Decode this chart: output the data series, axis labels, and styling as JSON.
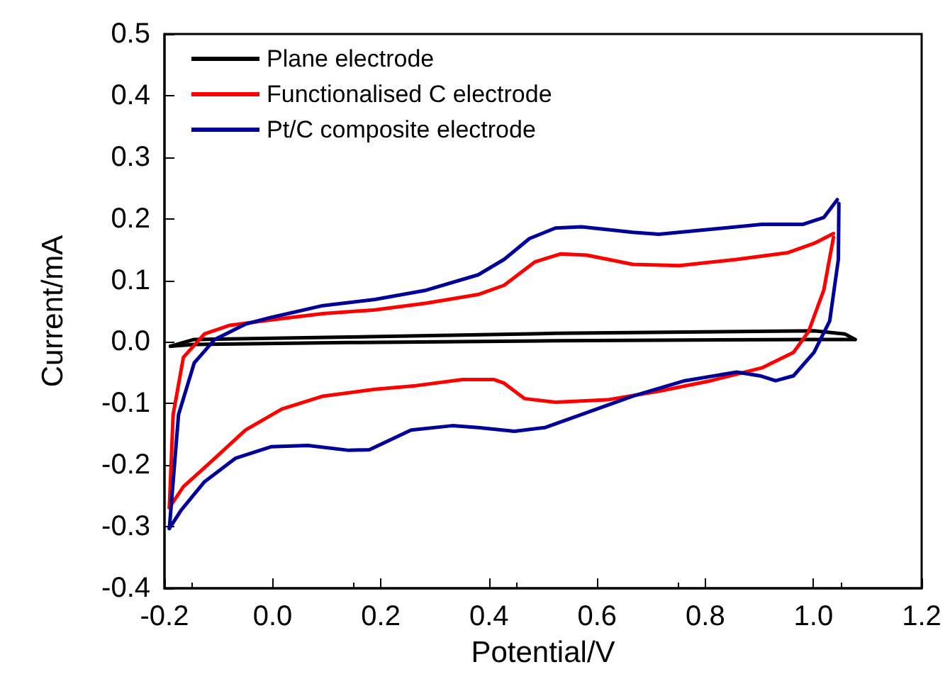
{
  "chart_data": {
    "type": "line",
    "xlabel": "Potential/V",
    "ylabel": "Current/mA",
    "xlim": [
      -0.2,
      1.2
    ],
    "xticks": [
      -0.2,
      {
        "value": 0,
        "label": "0.0"
      },
      0.2,
      0.4,
      0.6,
      0.8,
      {
        "value": 1,
        "label": "1.0"
      },
      1.2
    ],
    "ylim": [
      -0.4,
      0.5
    ],
    "yticks": [
      -0.4,
      -0.3,
      -0.2,
      -0.1,
      {
        "value": 0,
        "label": "0.0"
      },
      0.1,
      0.2,
      0.3,
      0.4,
      0.5
    ],
    "grid": false,
    "legend": "top left",
    "marker": "none",
    "line_style": "solid",
    "series": [
      {
        "name": "Plane electrode",
        "color": "#000000",
        "x": [
          -0.189,
          -0.145,
          0.141,
          0.523,
          1.001,
          1.058,
          1.077
        ],
        "values": [
          -0.007,
          0.004,
          0.008,
          0.014,
          0.018,
          0.013,
          0.004
        ]
      },
      {
        "color": "#000000",
        "x": [
          -0.189,
          -0.145,
          0.141,
          0.523,
          1.0,
          1.077
        ],
        "values": [
          -0.007,
          -0.004,
          -0.001,
          0.002,
          0.004,
          0.004
        ]
      },
      {
        "name": "Functionalised C electrode",
        "color": "#ff0000",
        "x": [
          -0.191,
          -0.184,
          -0.165,
          -0.126,
          -0.079,
          -0.002,
          0.093,
          0.189,
          0.284,
          0.38,
          0.428,
          0.485,
          0.533,
          0.581,
          0.666,
          0.752,
          0.858,
          0.953,
          1.001,
          1.037
        ],
        "values": [
          -0.269,
          -0.118,
          -0.025,
          0.013,
          0.027,
          0.036,
          0.046,
          0.052,
          0.063,
          0.077,
          0.092,
          0.13,
          0.143,
          0.141,
          0.126,
          0.124,
          0.134,
          0.145,
          0.16,
          0.176
        ]
      },
      {
        "color": "#ff0000",
        "x": [
          -0.191,
          -0.165,
          -0.117,
          -0.05,
          0.017,
          0.093,
          0.189,
          0.265,
          0.351,
          0.409,
          0.428,
          0.466,
          0.523,
          0.619,
          0.714,
          0.81,
          0.905,
          0.963,
          0.991,
          1.019,
          1.037
        ],
        "values": [
          -0.269,
          -0.235,
          -0.197,
          -0.143,
          -0.109,
          -0.088,
          -0.077,
          -0.071,
          -0.061,
          -0.061,
          -0.067,
          -0.092,
          -0.098,
          -0.094,
          -0.08,
          -0.063,
          -0.042,
          -0.017,
          0.017,
          0.084,
          0.17
        ]
      },
      {
        "name": "Pt/C composite electrode",
        "color": "#000099",
        "x": [
          -0.191,
          -0.174,
          -0.145,
          -0.107,
          -0.05,
          -0.002,
          0.093,
          0.189,
          0.284,
          0.38,
          0.428,
          0.475,
          0.523,
          0.571,
          0.666,
          0.714,
          0.81,
          0.905,
          0.981,
          1.019,
          1.044
        ],
        "values": [
          -0.303,
          -0.118,
          -0.034,
          0.004,
          0.029,
          0.04,
          0.059,
          0.069,
          0.084,
          0.109,
          0.134,
          0.168,
          0.185,
          0.187,
          0.178,
          0.175,
          0.183,
          0.191,
          0.191,
          0.202,
          0.231
        ]
      },
      {
        "color": "#000099",
        "x": [
          -0.191,
          -0.169,
          -0.126,
          -0.069,
          -0.002,
          0.065,
          0.141,
          0.179,
          0.256,
          0.332,
          0.38,
          0.447,
          0.504,
          0.571,
          0.666,
          0.762,
          0.858,
          0.901,
          0.93,
          0.963,
          1.001,
          1.03,
          1.046,
          1.047
        ],
        "values": [
          -0.303,
          -0.273,
          -0.227,
          -0.189,
          -0.17,
          -0.168,
          -0.176,
          -0.175,
          -0.143,
          -0.136,
          -0.139,
          -0.145,
          -0.139,
          -0.118,
          -0.088,
          -0.063,
          -0.049,
          -0.055,
          -0.063,
          -0.055,
          -0.017,
          0.034,
          0.134,
          0.225
        ]
      }
    ]
  }
}
